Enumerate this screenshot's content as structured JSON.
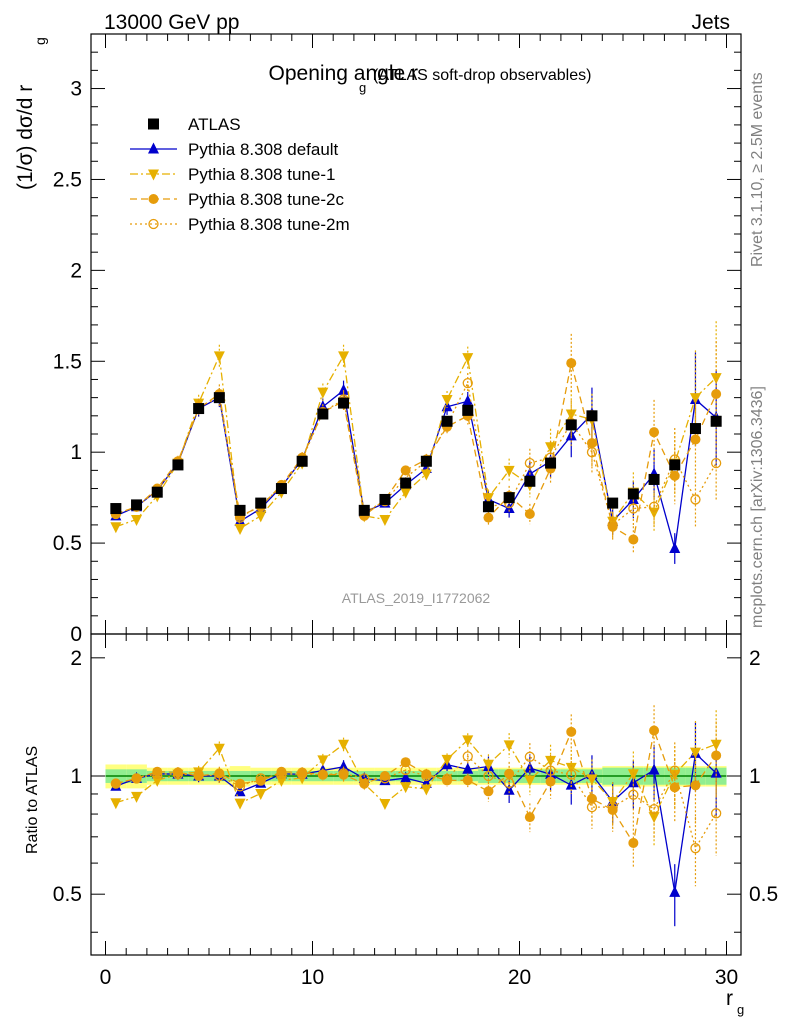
{
  "header": {
    "left": "13000 GeV pp",
    "right": "Jets"
  },
  "side_labels": {
    "rivet": "Rivet 3.1.10, ≥ 2.5M events",
    "mcplots": "mcplots.cern.ch [arXiv:1306.3436]"
  },
  "chart_data": [
    {
      "type": "scatter",
      "title": "Opening angle r",
      "title_sub": "g",
      "title_suffix": "(ATLAS soft-drop observables)",
      "analysis": "ATLAS_2019_I1772062",
      "ylabel": "(1/σ) dσ/d r",
      "ylabel_sub": "g",
      "xlim": [
        -0.7,
        30.7
      ],
      "ylim": [
        0,
        3.3
      ],
      "yticks": [
        0,
        0.5,
        1,
        1.5,
        2,
        2.5,
        3
      ],
      "x": [
        0.5,
        1.5,
        2.5,
        3.5,
        4.5,
        5.5,
        6.5,
        7.5,
        8.5,
        9.5,
        10.5,
        11.5,
        12.5,
        13.5,
        14.5,
        15.5,
        16.5,
        17.5,
        18.5,
        19.5,
        20.5,
        21.5,
        22.5,
        23.5,
        24.5,
        25.5,
        26.5,
        27.5,
        28.5,
        29.5
      ],
      "series": [
        {
          "name": "ATLAS",
          "color": "#000000",
          "marker": "square",
          "line": "none",
          "values": [
            0.69,
            0.71,
            0.78,
            0.93,
            1.24,
            1.3,
            0.68,
            0.72,
            0.8,
            0.95,
            1.21,
            1.27,
            0.68,
            0.74,
            0.83,
            0.95,
            1.17,
            1.23,
            0.7,
            0.75,
            0.84,
            0.94,
            1.15,
            1.2,
            0.72,
            0.77,
            0.85,
            0.93,
            1.13,
            1.17
          ]
        },
        {
          "name": "Pythia 8.308 default",
          "color": "#0000cc",
          "marker": "triangle-up",
          "line": "solid",
          "values": [
            0.65,
            0.7,
            0.79,
            0.94,
            1.24,
            1.3,
            0.62,
            0.69,
            0.81,
            0.96,
            1.25,
            1.34,
            0.67,
            0.72,
            0.82,
            0.91,
            1.25,
            1.28,
            0.74,
            0.69,
            0.88,
            0.95,
            1.09,
            1.21,
            0.62,
            0.74,
            0.88,
            0.47,
            1.29,
            1.19
          ]
        },
        {
          "name": "Pythia 8.308 tune-1",
          "color": "#e6b000",
          "marker": "triangle-down",
          "line": "dashdot",
          "values": [
            0.59,
            0.63,
            0.76,
            0.94,
            1.27,
            1.53,
            0.58,
            0.65,
            0.78,
            0.94,
            1.33,
            1.53,
            0.65,
            0.63,
            0.78,
            0.88,
            1.29,
            1.52,
            0.75,
            0.9,
            0.82,
            1.03,
            1.21,
            1.18,
            0.62,
            0.78,
            0.67,
            0.94,
            1.3,
            1.41
          ]
        },
        {
          "name": "Pythia 8.308 tune-2c",
          "color": "#e69c0b",
          "marker": "circle",
          "line": "dashed",
          "values": [
            0.66,
            0.7,
            0.8,
            0.95,
            1.24,
            1.32,
            0.65,
            0.7,
            0.82,
            0.97,
            1.22,
            1.28,
            0.65,
            0.74,
            0.9,
            0.96,
            1.14,
            1.2,
            0.64,
            0.76,
            0.66,
            0.91,
            1.49,
            1.05,
            0.59,
            0.52,
            1.11,
            0.87,
            1.07,
            1.32
          ]
        },
        {
          "name": "Pythia 8.308 tune-2m",
          "color": "#e69c0b",
          "marker": "circle-open",
          "line": "dotted",
          "values": [
            0.66,
            0.7,
            0.79,
            0.94,
            1.25,
            1.3,
            0.64,
            0.71,
            0.81,
            0.96,
            1.22,
            1.29,
            0.67,
            0.73,
            0.86,
            0.95,
            1.15,
            1.38,
            0.7,
            0.72,
            0.94,
            0.97,
            1.16,
            1.0,
            0.6,
            0.69,
            0.7,
            0.96,
            0.74,
            0.94
          ]
        }
      ],
      "legend": "top-left"
    },
    {
      "type": "scatter",
      "ylabel": "Ratio to ATLAS",
      "xlabel": "r",
      "xlabel_sub": "g",
      "xlim": [
        -0.7,
        30.7
      ],
      "ylim": [
        0.35,
        2.3
      ],
      "xticks": [
        0,
        10,
        20,
        30
      ],
      "yticks": [
        0.5,
        1,
        2
      ],
      "reference": 1,
      "band_inner": [
        0.04,
        0.04,
        0.03,
        0.03,
        0.03,
        0.03,
        0.03,
        0.03,
        0.03,
        0.03,
        0.03,
        0.03,
        0.03,
        0.03,
        0.03,
        0.03,
        0.03,
        0.03,
        0.04,
        0.04,
        0.04,
        0.04,
        0.04,
        0.04,
        0.05,
        0.05,
        0.05,
        0.05,
        0.05,
        0.05
      ],
      "band_outer": [
        0.07,
        0.07,
        0.05,
        0.05,
        0.05,
        0.05,
        0.06,
        0.05,
        0.05,
        0.05,
        0.05,
        0.05,
        0.05,
        0.05,
        0.05,
        0.05,
        0.05,
        0.05,
        0.05,
        0.05,
        0.05,
        0.05,
        0.05,
        0.05,
        0.06,
        0.06,
        0.06,
        0.06,
        0.06,
        0.06
      ],
      "band_colors": {
        "inner": "#90ee90",
        "outer": "#ffff80",
        "line": "#008000"
      }
    }
  ]
}
